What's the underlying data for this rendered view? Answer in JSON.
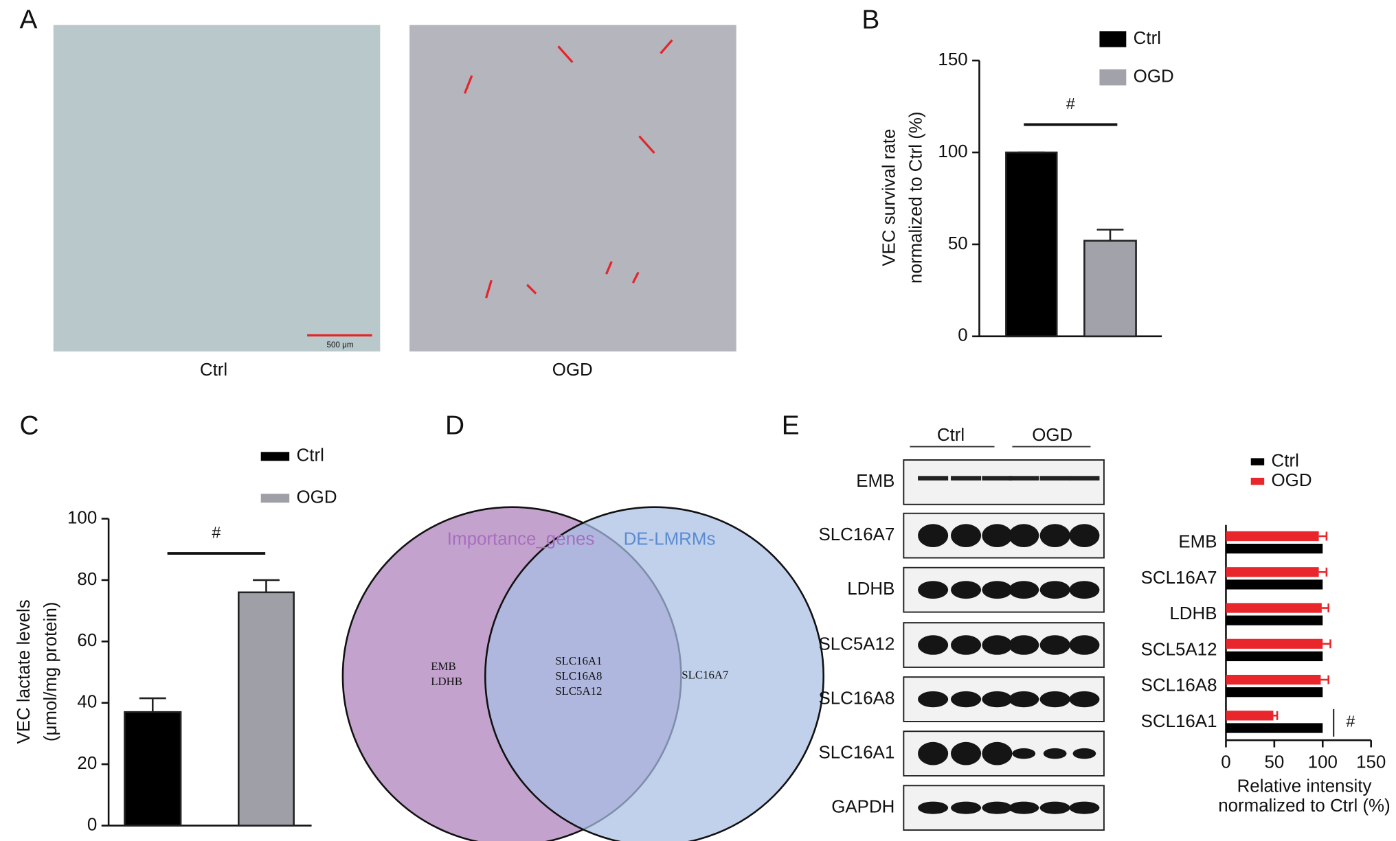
{
  "panel_labels": [
    "A",
    "B",
    "C",
    "D",
    "E"
  ],
  "micrographs": {
    "labels": [
      "Ctrl",
      "OGD"
    ],
    "scale_bar": "500 μm"
  },
  "chart_data": [
    {
      "type": "bar",
      "ylabel": [
        "VEC survival rate",
        "normalized to Ctrl (%)"
      ],
      "annotation": "#",
      "series": [
        {
          "name": "Ctrl",
          "color": "#000000",
          "values": [
            100
          ],
          "errors": [
            0
          ]
        },
        {
          "name": "OGD",
          "color": "#a2a2aa",
          "values": [
            52
          ],
          "errors": [
            6
          ]
        }
      ],
      "ylim": [
        0,
        150
      ],
      "yticks": [
        0,
        50,
        100,
        150
      ]
    },
    {
      "type": "bar",
      "ylabel": [
        "VEC lactate levels",
        "(μmol/mg protein)"
      ],
      "annotation": "#",
      "series": [
        {
          "name": "Ctrl",
          "color": "#000000",
          "values": [
            37
          ],
          "errors": [
            4.5
          ]
        },
        {
          "name": "OGD",
          "color": "#9f9fa8",
          "values": [
            76
          ],
          "errors": [
            4
          ]
        }
      ],
      "ylim": [
        0,
        100
      ],
      "yticks": [
        0,
        20,
        40,
        60,
        80,
        100
      ]
    },
    {
      "type": "hbar",
      "xlabel": [
        "Relative intensity",
        "normalized to Ctrl (%)"
      ],
      "annotation": "#",
      "categories": [
        "EMB",
        "SCL16A7",
        "LDHB",
        "SCL5A12",
        "SCL16A8",
        "SCL16A1"
      ],
      "series": [
        {
          "name": "Ctrl",
          "color": "#000000",
          "values": [
            100,
            100,
            100,
            100,
            100,
            100
          ]
        },
        {
          "name": "OGD",
          "color": "#e8262b",
          "values": [
            96,
            96,
            99,
            100,
            98,
            49
          ],
          "errors": [
            8,
            8,
            7,
            8,
            8,
            4
          ]
        }
      ],
      "xlim": [
        0,
        150
      ],
      "xticks": [
        0,
        50,
        100,
        150
      ]
    }
  ],
  "venn": {
    "sets": [
      "Importance_genes",
      "DE-LMRMs"
    ],
    "left_only": [
      "EMB",
      "LDHB"
    ],
    "both": [
      "SLC16A1",
      "SLC16A8",
      "SLC5A12"
    ],
    "right_only": [
      "SLC16A7"
    ]
  },
  "blot": {
    "groups": [
      "Ctrl",
      "OGD"
    ],
    "rows": [
      "EMB",
      "SLC16A7",
      "LDHB",
      "SLC5A12",
      "SLC16A8",
      "SLC16A1",
      "GAPDH"
    ]
  }
}
